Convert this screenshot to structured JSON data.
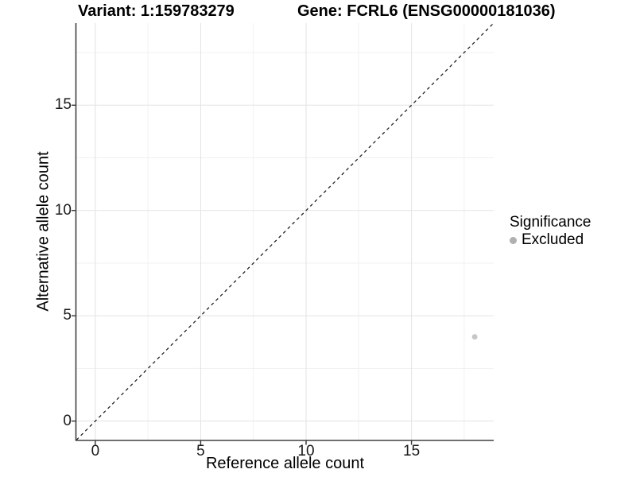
{
  "titles": {
    "left": "Variant: 1:159783279",
    "right": "Gene: FCRL6 (ENSG00000181036)"
  },
  "chart_data": {
    "type": "scatter",
    "xlabel": "Reference allele count",
    "ylabel": "Alternative allele count",
    "xlim": [
      -0.9,
      18.9
    ],
    "ylim": [
      -0.9,
      18.9
    ],
    "x_ticks": [
      0,
      5,
      10,
      15
    ],
    "y_ticks": [
      0,
      5,
      10,
      15
    ],
    "x_minor_ticks": [
      2.5,
      7.5,
      12.5,
      17.5
    ],
    "y_minor_ticks": [
      2.5,
      7.5,
      12.5,
      17.5
    ],
    "grid": "major and minor gridlines on white panel",
    "reference_line": {
      "type": "identity y=x",
      "style": "dashed",
      "color": "#000000"
    },
    "series": [
      {
        "name": "Excluded",
        "color": "#c6c6c6",
        "points": [
          {
            "x": 18,
            "y": 4
          }
        ]
      }
    ]
  },
  "legend": {
    "title": "Significance",
    "position": "right-center",
    "items": [
      {
        "label": "Excluded",
        "color": "#b0b0b0",
        "shape": "circle"
      }
    ]
  },
  "style_colors": {
    "grid_major": "#e3e3e3",
    "grid_minor": "#f1f1f1",
    "axis_line": "#404040",
    "tick_mark": "#333333",
    "point_fill": "#c6c6c6",
    "legend_key_fill": "#b0b0b0",
    "dashed_line": "#111111"
  }
}
